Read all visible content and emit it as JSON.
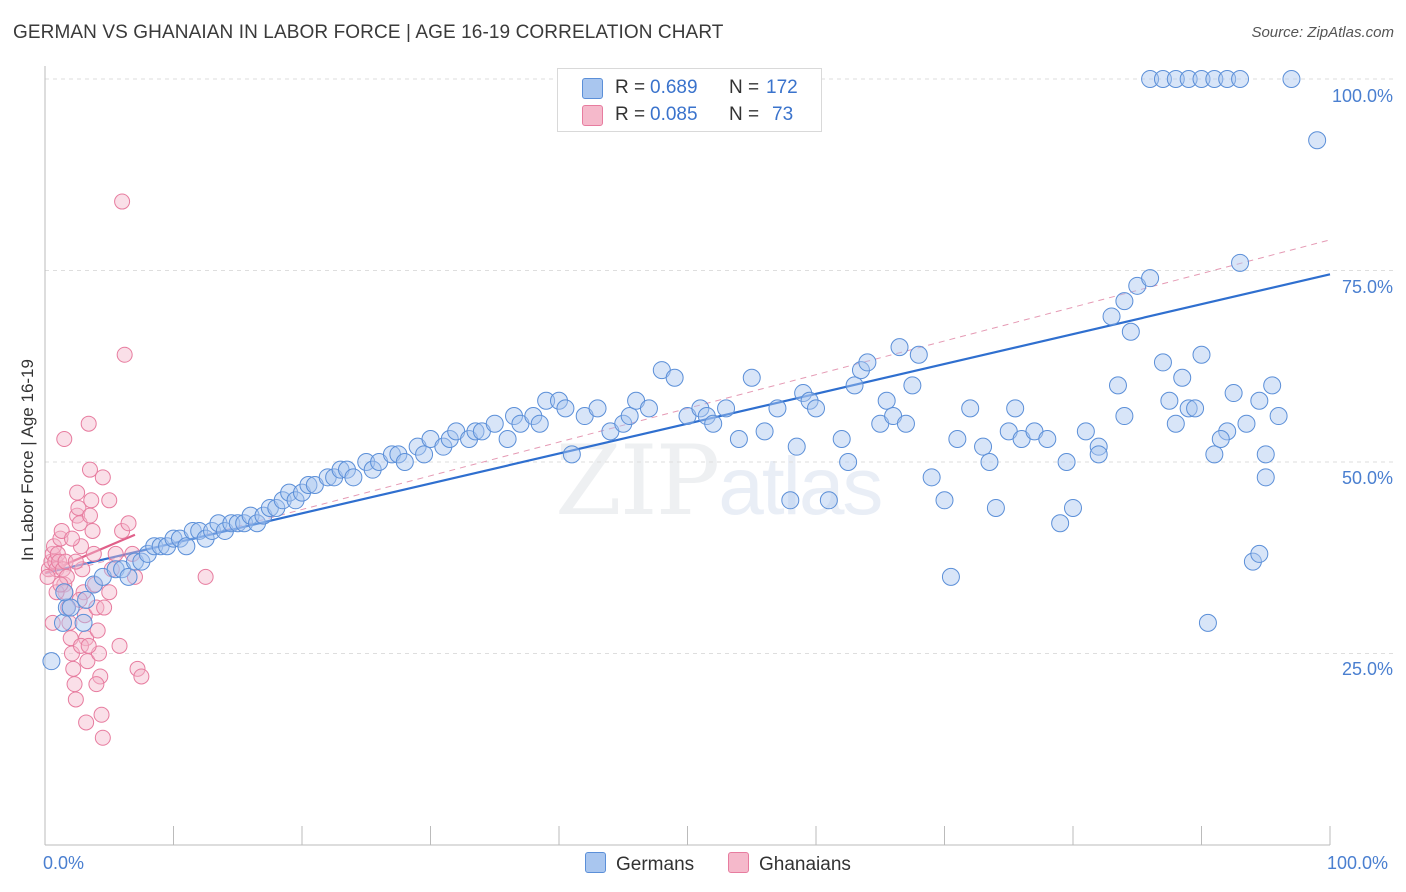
{
  "header": {
    "title": "GERMAN VS GHANAIAN IN LABOR FORCE | AGE 16-19 CORRELATION CHART",
    "source": "Source: ZipAtlas.com"
  },
  "watermark": {
    "zip": "ZIP",
    "atlas": "atlas"
  },
  "legend": {
    "rows": [
      {
        "r_label": "R =",
        "r_value": "0.689",
        "n_label": "N =",
        "n_value": "172"
      },
      {
        "r_label": "R =",
        "r_value": "0.085",
        "n_label": "N =",
        "n_value": " 73"
      }
    ],
    "bottom": [
      {
        "label": "Germans"
      },
      {
        "label": "Ghanaians"
      }
    ]
  },
  "colors": {
    "blue_fill": "#a9c6ef",
    "blue_stroke": "#5b8fd8",
    "blue_line": "#2f6fcf",
    "pink_fill": "#f5b9cb",
    "pink_stroke": "#e77c9f",
    "pink_line": "#e0608a",
    "tick_text": "#4a7fd0"
  },
  "chart_data": {
    "type": "scatter",
    "title": "GERMAN VS GHANAIAN IN LABOR FORCE | AGE 16-19 CORRELATION CHART",
    "xlabel": "",
    "ylabel": "In Labor Force | Age 16-19",
    "xlim": [
      0,
      100
    ],
    "ylim": [
      0,
      100
    ],
    "x_tick_labels": [
      "0.0%",
      "100.0%"
    ],
    "y_tick_labels": [
      "100.0%",
      "75.0%",
      "50.0%",
      "25.0%"
    ],
    "y_ticks": [
      100,
      75,
      50,
      25
    ],
    "grid": true,
    "legend_position": "top-center",
    "series": [
      {
        "name": "Germans",
        "r": 0.689,
        "n": 172,
        "trend": {
          "x": [
            0,
            100
          ],
          "y": [
            35.5,
            74.5
          ],
          "style": "solid"
        },
        "trend_extended": {
          "x": [
            0,
            100
          ],
          "y": [
            35.0,
            79.0
          ],
          "style": "dashed"
        },
        "points": [
          [
            0.5,
            24
          ],
          [
            1.4,
            29
          ],
          [
            1.7,
            31
          ],
          [
            2.0,
            31
          ],
          [
            1.5,
            33
          ],
          [
            3.0,
            29
          ],
          [
            3.2,
            32
          ],
          [
            3.8,
            34
          ],
          [
            4.5,
            35
          ],
          [
            5.5,
            36
          ],
          [
            6,
            36
          ],
          [
            6.5,
            35
          ],
          [
            7,
            37
          ],
          [
            7.5,
            37
          ],
          [
            8,
            38
          ],
          [
            8.5,
            39
          ],
          [
            9,
            39
          ],
          [
            9.5,
            39
          ],
          [
            10,
            40
          ],
          [
            10.5,
            40
          ],
          [
            11,
            39
          ],
          [
            11.5,
            41
          ],
          [
            12,
            41
          ],
          [
            12.5,
            40
          ],
          [
            13,
            41
          ],
          [
            13.5,
            42
          ],
          [
            14,
            41
          ],
          [
            14.5,
            42
          ],
          [
            15,
            42
          ],
          [
            15.5,
            42
          ],
          [
            16,
            43
          ],
          [
            16.5,
            42
          ],
          [
            17,
            43
          ],
          [
            17.5,
            44
          ],
          [
            18,
            44
          ],
          [
            18.5,
            45
          ],
          [
            19,
            46
          ],
          [
            19.5,
            45
          ],
          [
            20,
            46
          ],
          [
            20.5,
            47
          ],
          [
            21,
            47
          ],
          [
            22,
            48
          ],
          [
            22.5,
            48
          ],
          [
            23,
            49
          ],
          [
            23.5,
            49
          ],
          [
            24,
            48
          ],
          [
            25,
            50
          ],
          [
            25.5,
            49
          ],
          [
            26,
            50
          ],
          [
            27,
            51
          ],
          [
            27.5,
            51
          ],
          [
            28,
            50
          ],
          [
            29,
            52
          ],
          [
            29.5,
            51
          ],
          [
            30,
            53
          ],
          [
            31,
            52
          ],
          [
            31.5,
            53
          ],
          [
            32,
            54
          ],
          [
            33,
            53
          ],
          [
            33.5,
            54
          ],
          [
            34,
            54
          ],
          [
            35,
            55
          ],
          [
            36,
            53
          ],
          [
            36.5,
            56
          ],
          [
            37,
            55
          ],
          [
            38,
            56
          ],
          [
            38.5,
            55
          ],
          [
            39,
            58
          ],
          [
            40,
            58
          ],
          [
            40.5,
            57
          ],
          [
            41,
            51
          ],
          [
            42,
            56
          ],
          [
            43,
            57
          ],
          [
            44,
            54
          ],
          [
            45,
            55
          ],
          [
            45.5,
            56
          ],
          [
            46,
            58
          ],
          [
            47,
            57
          ],
          [
            48,
            62
          ],
          [
            49,
            61
          ],
          [
            50,
            56
          ],
          [
            51,
            57
          ],
          [
            51.5,
            56
          ],
          [
            52,
            55
          ],
          [
            53,
            57
          ],
          [
            54,
            53
          ],
          [
            55,
            61
          ],
          [
            56,
            54
          ],
          [
            57,
            57
          ],
          [
            58,
            45
          ],
          [
            58.5,
            52
          ],
          [
            59,
            59
          ],
          [
            59.5,
            58
          ],
          [
            60,
            57
          ],
          [
            61,
            45
          ],
          [
            62,
            53
          ],
          [
            62.5,
            50
          ],
          [
            63,
            60
          ],
          [
            63.5,
            62
          ],
          [
            64,
            63
          ],
          [
            65,
            55
          ],
          [
            65.5,
            58
          ],
          [
            66,
            56
          ],
          [
            66.5,
            65
          ],
          [
            67,
            55
          ],
          [
            67.5,
            60
          ],
          [
            68,
            64
          ],
          [
            69,
            48
          ],
          [
            70,
            45
          ],
          [
            70.5,
            35
          ],
          [
            71,
            53
          ],
          [
            72,
            57
          ],
          [
            73,
            52
          ],
          [
            73.5,
            50
          ],
          [
            74,
            44
          ],
          [
            75,
            54
          ],
          [
            75.5,
            57
          ],
          [
            76,
            53
          ],
          [
            77,
            54
          ],
          [
            78,
            53
          ],
          [
            79,
            42
          ],
          [
            79.5,
            50
          ],
          [
            80,
            44
          ],
          [
            81,
            54
          ],
          [
            82,
            52
          ],
          [
            83,
            69
          ],
          [
            84,
            71
          ],
          [
            84.5,
            67
          ],
          [
            85,
            73
          ],
          [
            86,
            74
          ],
          [
            87,
            63
          ],
          [
            88,
            55
          ],
          [
            89,
            57
          ],
          [
            90,
            64
          ],
          [
            90.5,
            29
          ],
          [
            91,
            51
          ],
          [
            92,
            54
          ],
          [
            93,
            76
          ],
          [
            94,
            37
          ],
          [
            94.5,
            38
          ],
          [
            95,
            48
          ],
          [
            82,
            51
          ],
          [
            83.5,
            60
          ],
          [
            84,
            56
          ],
          [
            86,
            100
          ],
          [
            87,
            100
          ],
          [
            88,
            100
          ],
          [
            89,
            100
          ],
          [
            90,
            100
          ],
          [
            91,
            100
          ],
          [
            92,
            100
          ],
          [
            93,
            100
          ],
          [
            97,
            100
          ],
          [
            99,
            92
          ],
          [
            95,
            51
          ],
          [
            96,
            56
          ],
          [
            87.5,
            58
          ],
          [
            88.5,
            61
          ],
          [
            89.5,
            57
          ],
          [
            91.5,
            53
          ],
          [
            92.5,
            59
          ],
          [
            93.5,
            55
          ],
          [
            94.5,
            58
          ],
          [
            95.5,
            60
          ]
        ]
      },
      {
        "name": "Ghanaians",
        "r": 0.085,
        "n": 73,
        "trend": {
          "x": [
            0,
            7
          ],
          "y": [
            35.5,
            40.5
          ],
          "style": "solid"
        },
        "points": [
          [
            0.3,
            36
          ],
          [
            0.5,
            37
          ],
          [
            0.6,
            38
          ],
          [
            0.7,
            39
          ],
          [
            0.8,
            37
          ],
          [
            0.9,
            36
          ],
          [
            1.0,
            38
          ],
          [
            1.1,
            37
          ],
          [
            1.2,
            40
          ],
          [
            1.3,
            41
          ],
          [
            1.4,
            36
          ],
          [
            1.5,
            34
          ],
          [
            1.6,
            33
          ],
          [
            1.7,
            35
          ],
          [
            1.8,
            31
          ],
          [
            1.9,
            29
          ],
          [
            2.0,
            27
          ],
          [
            2.1,
            25
          ],
          [
            2.2,
            23
          ],
          [
            2.3,
            21
          ],
          [
            2.4,
            19
          ],
          [
            2.5,
            43
          ],
          [
            2.6,
            44
          ],
          [
            2.7,
            42
          ],
          [
            2.8,
            39
          ],
          [
            2.9,
            36
          ],
          [
            3.0,
            33
          ],
          [
            3.1,
            30
          ],
          [
            3.2,
            27
          ],
          [
            3.3,
            24
          ],
          [
            3.4,
            55
          ],
          [
            3.5,
            49
          ],
          [
            3.6,
            45
          ],
          [
            3.7,
            41
          ],
          [
            3.8,
            38
          ],
          [
            3.9,
            34
          ],
          [
            4.0,
            31
          ],
          [
            4.1,
            28
          ],
          [
            4.2,
            25
          ],
          [
            4.3,
            22
          ],
          [
            4.4,
            17
          ],
          [
            4.5,
            14
          ],
          [
            1.5,
            53
          ],
          [
            2.5,
            46
          ],
          [
            3.5,
            43
          ],
          [
            4.5,
            48
          ],
          [
            5,
            45
          ],
          [
            5,
            33
          ],
          [
            5.5,
            38
          ],
          [
            6,
            41
          ],
          [
            6,
            84
          ],
          [
            6.2,
            64
          ],
          [
            6.5,
            42
          ],
          [
            6.8,
            38
          ],
          [
            7,
            35
          ],
          [
            7.2,
            23
          ],
          [
            7.5,
            22
          ],
          [
            2.8,
            26
          ],
          [
            3.2,
            16
          ],
          [
            0.6,
            29
          ],
          [
            0.9,
            33
          ],
          [
            1.2,
            34
          ],
          [
            1.6,
            37
          ],
          [
            2.1,
            40
          ],
          [
            2.4,
            37
          ],
          [
            2.7,
            32
          ],
          [
            3.4,
            26
          ],
          [
            4.0,
            21
          ],
          [
            4.6,
            31
          ],
          [
            5.2,
            36
          ],
          [
            5.8,
            26
          ],
          [
            12.5,
            35
          ],
          [
            0.2,
            35
          ]
        ]
      }
    ]
  }
}
